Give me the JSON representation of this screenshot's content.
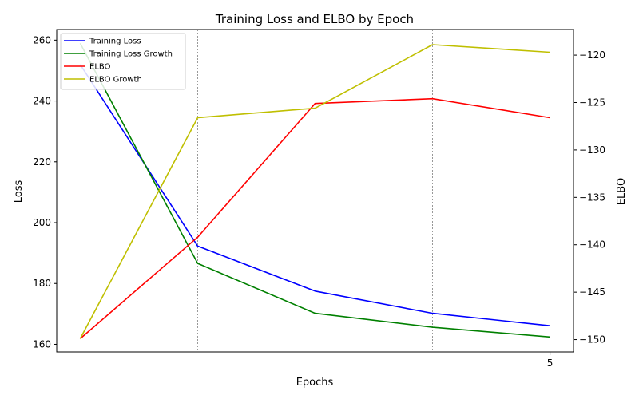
{
  "chart_data": {
    "type": "line",
    "title": "Training Loss and ELBO by Epoch",
    "xlabel": "Epochs",
    "ylabel": "Loss",
    "ylabel_right": "ELBO",
    "x": [
      1,
      2,
      3,
      4,
      5
    ],
    "xticks": [
      5
    ],
    "xlim": [
      0.8,
      5.2
    ],
    "ylim": [
      157.5,
      263.5
    ],
    "ylim_right": [
      -151.3,
      -117.3
    ],
    "yticks": [
      160,
      180,
      200,
      220,
      240,
      260
    ],
    "yticks_right": [
      -150,
      -145,
      -140,
      -135,
      -130,
      -125,
      -120
    ],
    "vlines": [
      2,
      4
    ],
    "legend_position": "upper-left",
    "series": [
      {
        "name": "Training Loss",
        "axis": "left",
        "color": "#0000ff",
        "values": [
          252,
          192.3,
          177.5,
          170.2,
          166.1
        ]
      },
      {
        "name": "Training Loss Growth",
        "axis": "left",
        "color": "#008000",
        "values": [
          259,
          186.6,
          170.2,
          165.6,
          162.4
        ]
      },
      {
        "name": "ELBO",
        "axis": "right",
        "color": "#ff0000",
        "values": [
          -149.9,
          -139.2,
          -125.1,
          -124.6,
          -126.6
        ]
      },
      {
        "name": "ELBO Growth",
        "axis": "right",
        "color": "#bfbf00",
        "values": [
          -149.9,
          -126.6,
          -125.6,
          -118.9,
          -119.7
        ]
      }
    ]
  }
}
